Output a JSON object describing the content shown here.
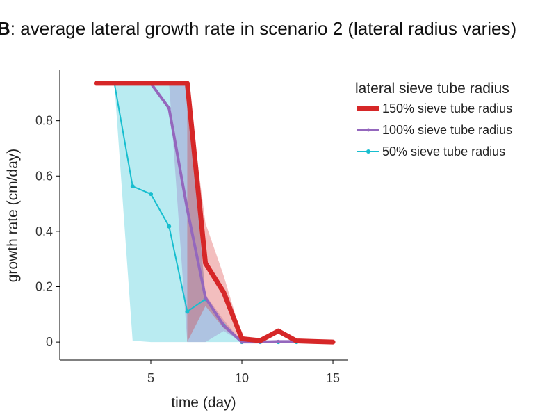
{
  "chart_data": {
    "type": "line",
    "title_bold": "B",
    "title_rest": ": average lateral growth rate in scenario 2 (lateral radius varies)",
    "xlabel": "time (day)",
    "ylabel": "growth rate (cm/day)",
    "xlim": [
      0,
      15.8
    ],
    "ylim": [
      -0.065,
      0.985
    ],
    "xticks": [
      5,
      10,
      15
    ],
    "xtick_labels": [
      "5",
      "10",
      "15"
    ],
    "yticks": [
      0,
      0.2,
      0.4,
      0.6,
      0.8
    ],
    "ytick_labels": [
      "0",
      "0.2",
      "0.4",
      "0.6",
      "0.8"
    ],
    "grid": false,
    "legend": {
      "title": "lateral sieve tube radius",
      "placement": "outside-right"
    },
    "series": [
      {
        "name": "150% sieve tube radius",
        "color": "#d62728",
        "x": [
          2,
          3,
          4,
          5,
          6,
          7,
          8,
          9,
          10,
          11,
          12,
          13,
          14,
          15
        ],
        "y": [
          0.935,
          0.935,
          0.935,
          0.935,
          0.935,
          0.935,
          0.285,
          0.18,
          0.012,
          0.005,
          0.04,
          0.004,
          0.002,
          0.0
        ],
        "band_x": [
          7,
          8,
          9,
          10
        ],
        "band_low": [
          0.0,
          0.13,
          0.05,
          0.0
        ],
        "band_high": [
          0.935,
          0.43,
          0.24,
          0.02
        ]
      },
      {
        "name": "100% sieve tube radius",
        "color": "#9467bd",
        "x": [
          2,
          3,
          4,
          5,
          6,
          7,
          8,
          9,
          10,
          11,
          12,
          13,
          14,
          15
        ],
        "y": [
          0.935,
          0.935,
          0.935,
          0.935,
          0.845,
          0.48,
          0.16,
          0.06,
          0.0,
          0.0,
          0.002,
          0.002,
          0.0,
          0.0
        ],
        "band_x": [
          6,
          7,
          8,
          9,
          10
        ],
        "band_low": [
          0.935,
          0.0,
          0.0,
          0.04,
          0.0
        ],
        "band_high": [
          0.935,
          0.935,
          0.17,
          0.08,
          0.0
        ]
      },
      {
        "name": "50% sieve tube radius",
        "color": "#17becf",
        "x": [
          3,
          4,
          5,
          6,
          7,
          8,
          9,
          10,
          11,
          12,
          13
        ],
        "y": [
          0.935,
          0.563,
          0.535,
          0.418,
          0.11,
          0.155,
          0.06,
          0.0,
          0.0,
          0.0,
          0.0
        ],
        "band_x": [
          3,
          4,
          5,
          6,
          7,
          8,
          9,
          10
        ],
        "band_low": [
          0.935,
          0.005,
          0.0,
          0.0,
          0.0,
          0.0,
          0.0,
          0.0
        ],
        "band_high": [
          0.935,
          0.935,
          0.935,
          0.935,
          0.935,
          0.16,
          0.07,
          0.0
        ]
      }
    ]
  }
}
